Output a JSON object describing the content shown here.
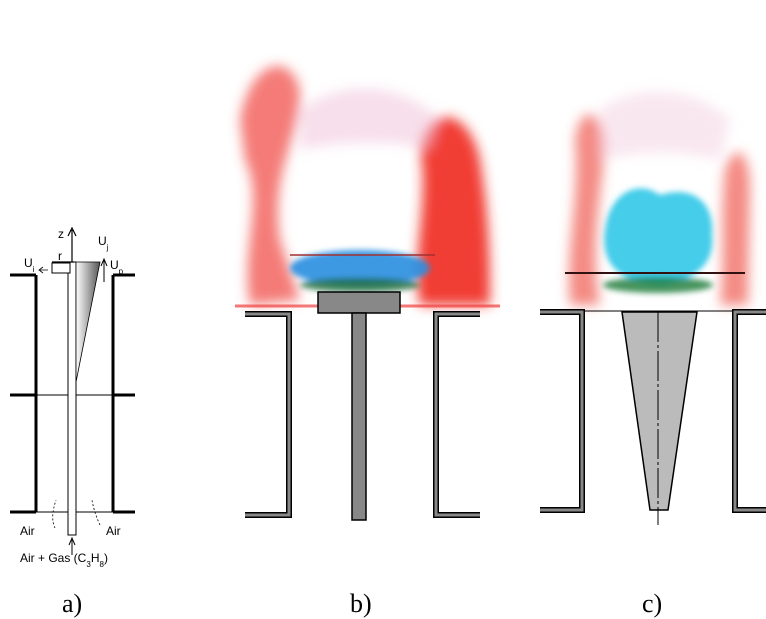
{
  "panel_a": {
    "axis_z": "z",
    "axis_r": "r",
    "velocity_i": [
      "U",
      "i"
    ],
    "velocity_j": [
      "U",
      "j"
    ],
    "velocity_p": [
      "U",
      "p"
    ],
    "air_left": "Air",
    "air_right": "Air",
    "fuel": [
      "Air + Gas (C",
      "3",
      "H",
      "8",
      ")"
    ],
    "caption": "a)"
  },
  "panel_b": {
    "caption": "b)"
  },
  "panel_c": {
    "caption": "c)"
  }
}
